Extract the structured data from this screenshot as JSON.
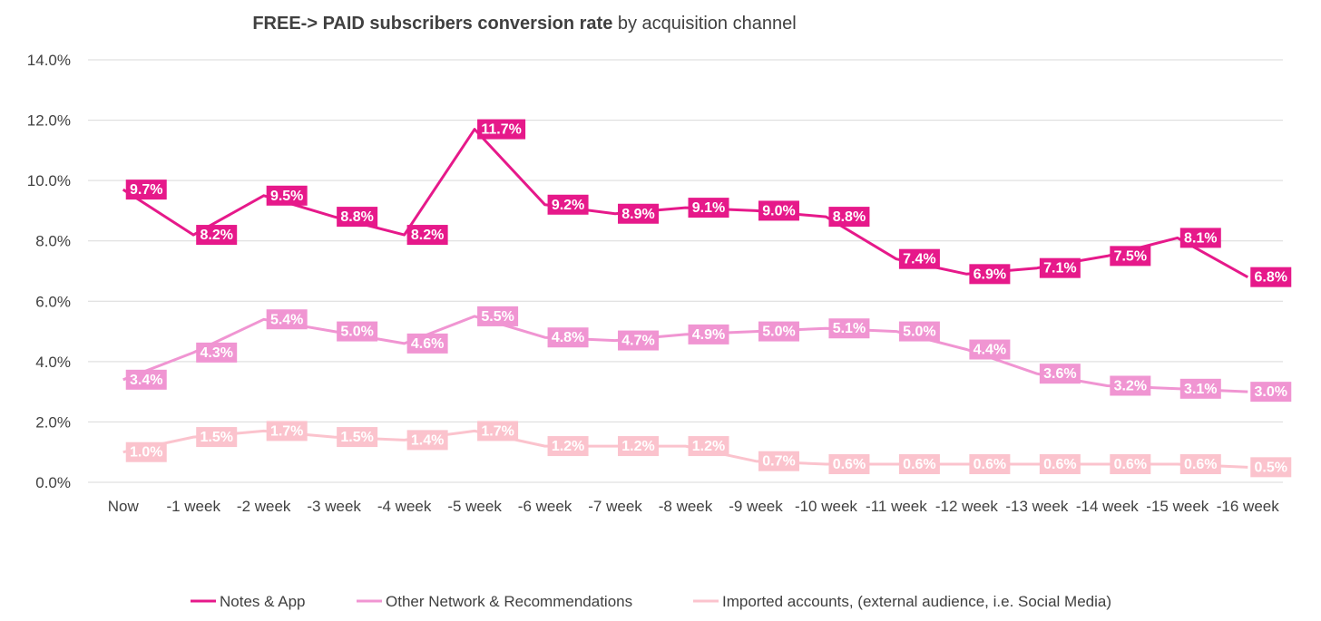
{
  "chart_data": {
    "type": "line",
    "title_bold": "FREE-> PAID subscribers conversion rate",
    "title_rest": " by acquisition channel",
    "xlabel": "",
    "ylabel": "",
    "ylim": [
      0,
      14
    ],
    "y_ticks": [
      "0.0%",
      "2.0%",
      "4.0%",
      "6.0%",
      "8.0%",
      "10.0%",
      "12.0%",
      "14.0%"
    ],
    "grid": true,
    "legend_position": "bottom",
    "categories": [
      "Now",
      "-1 week",
      "-2 week",
      "-3 week",
      "-4 week",
      "-5 week",
      "-6 week",
      "-7 week",
      "-8 week",
      "-9 week",
      "-10 week",
      "-11 week",
      "-12 week",
      "-13 week",
      "-14 week",
      "-15 week",
      "-16 week"
    ],
    "series": [
      {
        "name": "Notes & App",
        "color": "#e6198a",
        "values": [
          9.7,
          8.2,
          9.5,
          8.8,
          8.2,
          11.7,
          9.2,
          8.9,
          9.1,
          9.0,
          8.8,
          7.4,
          6.9,
          7.1,
          7.5,
          8.1,
          6.8
        ],
        "labels": [
          "9.7%",
          "8.2%",
          "9.5%",
          "8.8%",
          "8.2%",
          "11.7%",
          "9.2%",
          "8.9%",
          "9.1%",
          "9.0%",
          "8.8%",
          "7.4%",
          "6.9%",
          "7.1%",
          "7.5%",
          "8.1%",
          "6.8%"
        ]
      },
      {
        "name": "Other Network & Recommendations",
        "color": "#f095d2",
        "values": [
          3.4,
          4.3,
          5.4,
          5.0,
          4.6,
          5.5,
          4.8,
          4.7,
          4.9,
          5.0,
          5.1,
          5.0,
          4.4,
          3.6,
          3.2,
          3.1,
          3.0
        ],
        "labels": [
          "3.4%",
          "4.3%",
          "5.4%",
          "5.0%",
          "4.6%",
          "5.5%",
          "4.8%",
          "4.7%",
          "4.9%",
          "5.0%",
          "5.1%",
          "5.0%",
          "4.4%",
          "3.6%",
          "3.2%",
          "3.1%",
          "3.0%"
        ]
      },
      {
        "name": "Imported accounts, (external audience, i.e. Social Media)",
        "color": "#fbc3cd",
        "values": [
          1.0,
          1.5,
          1.7,
          1.5,
          1.4,
          1.7,
          1.2,
          1.2,
          1.2,
          0.7,
          0.6,
          0.6,
          0.6,
          0.6,
          0.6,
          0.6,
          0.5
        ],
        "labels": [
          "1.0%",
          "1.5%",
          "1.7%",
          "1.5%",
          "1.4%",
          "1.7%",
          "1.2%",
          "1.2%",
          "1.2%",
          "0.7%",
          "0.6%",
          "0.6%",
          "0.6%",
          "0.6%",
          "0.6%",
          "0.6%",
          "0.5%"
        ]
      }
    ]
  }
}
